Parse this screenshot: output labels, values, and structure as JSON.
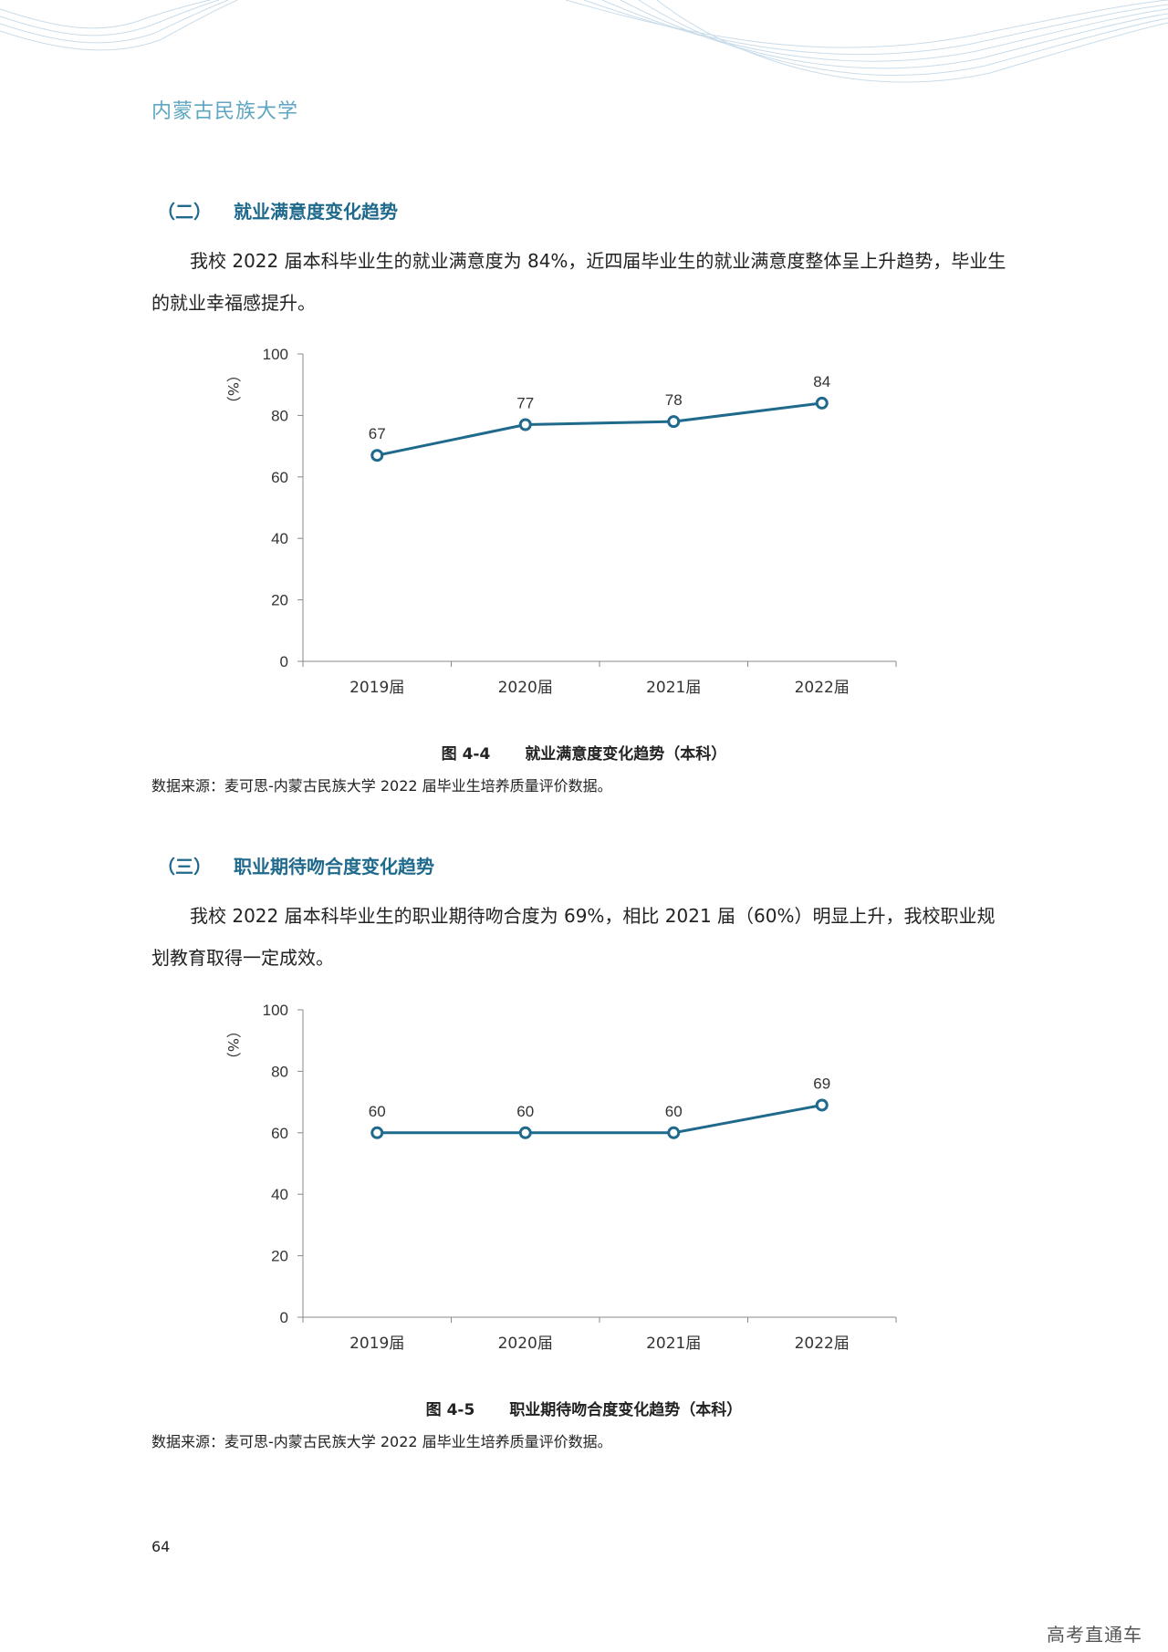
{
  "header": {
    "org": "内蒙古民族大学"
  },
  "sections": [
    {
      "number": "（二）",
      "title": "就业满意度变化趋势",
      "paragraph": "我校 2022 届本科毕业生的就业满意度为 84%，近四届毕业生的就业满意度整体呈上升趋势，毕业生的就业幸福感提升。",
      "figure_number": "图 4-4",
      "figure_title": "就业满意度变化趋势（本科）",
      "source": "数据来源：麦可思-内蒙古民族大学 2022 届毕业生培养质量评价数据。"
    },
    {
      "number": "（三）",
      "title": "职业期待吻合度变化趋势",
      "paragraph": "我校 2022 届本科毕业生的职业期待吻合度为 69%，相比 2021 届（60%）明显上升，我校职业规划教育取得一定成效。",
      "figure_number": "图 4-5",
      "figure_title": "职业期待吻合度变化趋势（本科）",
      "source": "数据来源：麦可思-内蒙古民族大学 2022 届毕业生培养质量评价数据。"
    }
  ],
  "chart_data": [
    {
      "type": "line",
      "categories": [
        "2019届",
        "2020届",
        "2021届",
        "2022届"
      ],
      "series": [
        {
          "values": [
            67,
            77,
            78,
            84
          ]
        }
      ],
      "ylabel": "（%）",
      "ylim": [
        0,
        100
      ],
      "yticks": [
        0,
        20,
        40,
        60,
        80,
        100
      ],
      "color": "#1f6a8c",
      "data_labels": true,
      "grid": false
    },
    {
      "type": "line",
      "categories": [
        "2019届",
        "2020届",
        "2021届",
        "2022届"
      ],
      "series": [
        {
          "values": [
            60,
            60,
            60,
            69
          ]
        }
      ],
      "ylabel": "（%）",
      "ylim": [
        0,
        100
      ],
      "yticks": [
        0,
        20,
        40,
        60,
        80,
        100
      ],
      "color": "#1f6a8c",
      "data_labels": true,
      "grid": false
    }
  ],
  "footer": {
    "page_number": "64",
    "watermark": "高考直通车"
  }
}
